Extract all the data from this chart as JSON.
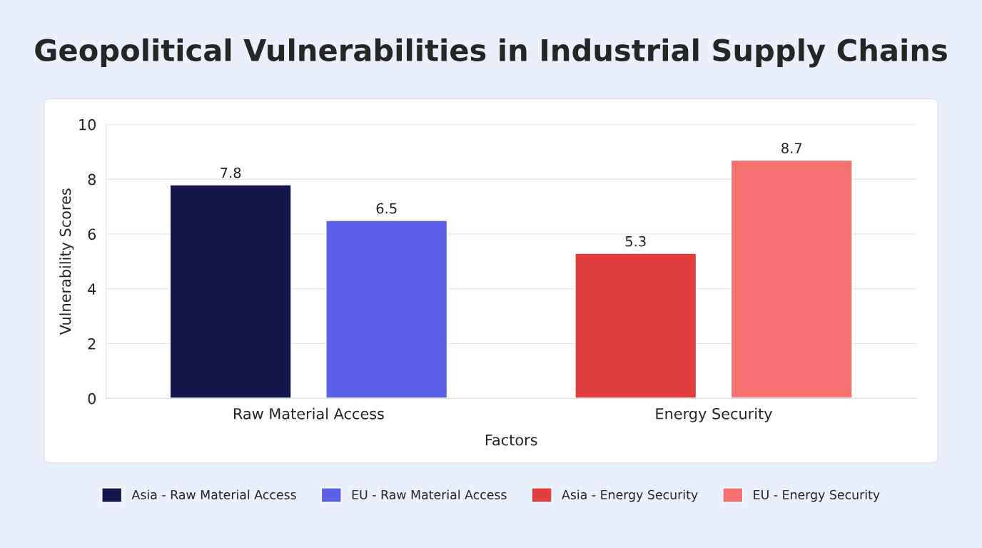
{
  "chart_data": {
    "type": "bar",
    "title": "Geopolitical Vulnerabilities in Industrial Supply Chains",
    "xlabel": "Factors",
    "ylabel": "Vulnerability Scores",
    "categories": [
      "Raw Material Access",
      "Energy Security"
    ],
    "series": [
      {
        "name": "Asia - Raw Material Access",
        "color": "#16174d",
        "values": [
          7.8,
          null
        ]
      },
      {
        "name": "EU - Raw Material Access",
        "color": "#5b60e6",
        "values": [
          6.5,
          null
        ]
      },
      {
        "name": "Asia - Energy Security",
        "color": "#e33e3e",
        "values": [
          null,
          5.3
        ]
      },
      {
        "name": "EU - Energy Security",
        "color": "#f47171",
        "values": [
          null,
          8.7
        ]
      }
    ],
    "ylim": [
      0,
      10
    ],
    "yticks": [
      0,
      2,
      4,
      6,
      8,
      10
    ],
    "grid": "y",
    "legend": "bottom",
    "data_labels": true
  }
}
